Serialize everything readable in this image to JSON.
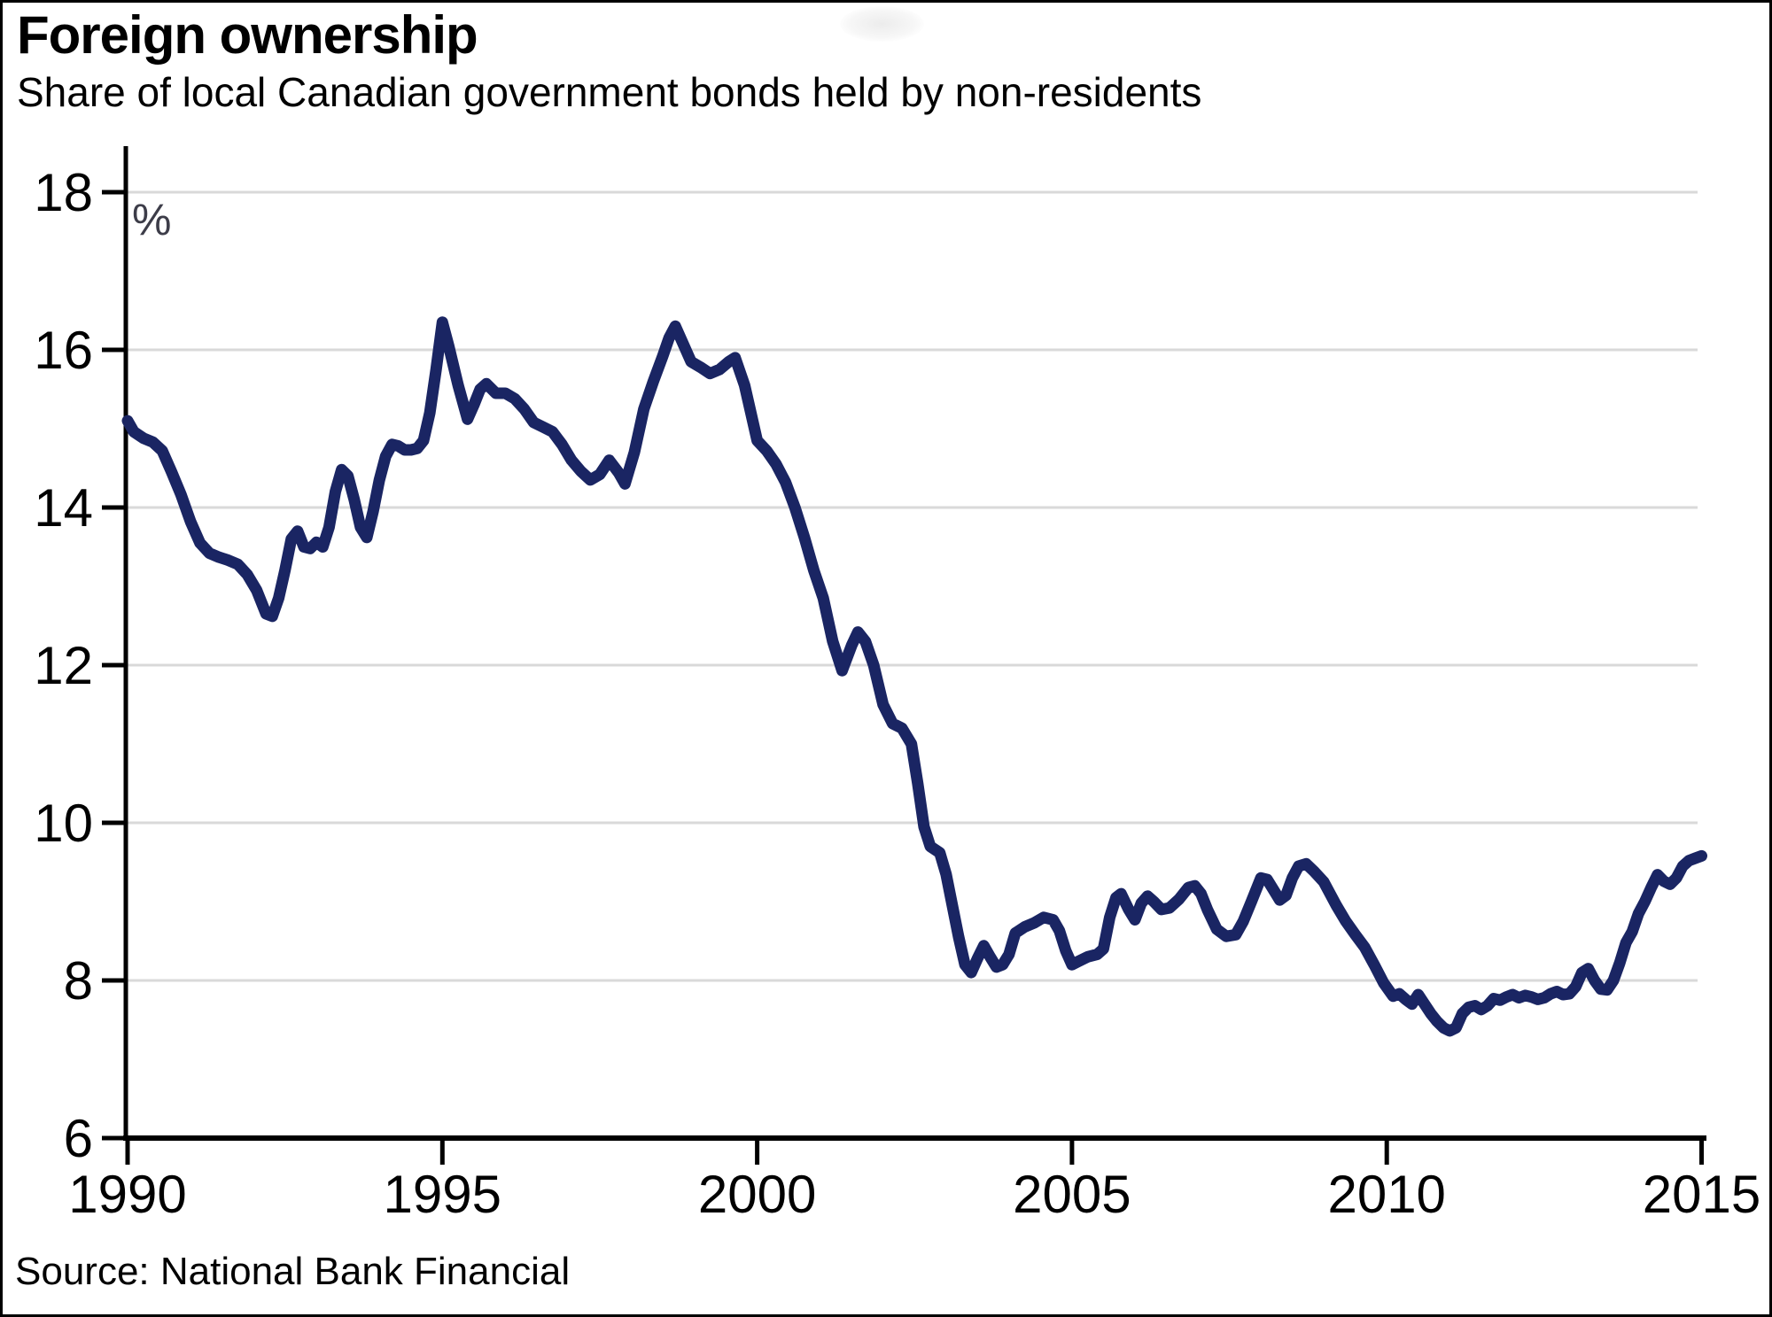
{
  "header": {
    "title": "Foreign ownership",
    "subtitle": "Share of local Canadian government bonds held by non-residents"
  },
  "footer": {
    "source": "Source: National Bank Financial"
  },
  "chart_data": {
    "type": "line",
    "title": "Foreign ownership",
    "subtitle": "Share of local Canadian government bonds held by non-residents",
    "xlabel": "",
    "ylabel": "%",
    "unit_label": "%",
    "xlim": [
      1990,
      2015
    ],
    "ylim": [
      6,
      18
    ],
    "x_ticks": [
      1990,
      1995,
      2000,
      2005,
      2010,
      2015
    ],
    "y_ticks": [
      18,
      16,
      14,
      12,
      10,
      8,
      6
    ],
    "gridlines_at": [
      18,
      16,
      14,
      12,
      10,
      8
    ],
    "grid": "horizontal",
    "legend": "none",
    "line_color": "#1a2563",
    "grid_color": "#d9d9d9",
    "axis_color": "#000000",
    "series": [
      {
        "name": "Share of local Canadian government bonds held by non-residents (%)",
        "points": [
          [
            1990.0,
            15.1
          ],
          [
            1990.1,
            14.96
          ],
          [
            1990.25,
            14.88
          ],
          [
            1990.4,
            14.83
          ],
          [
            1990.55,
            14.72
          ],
          [
            1990.7,
            14.45
          ],
          [
            1990.85,
            14.16
          ],
          [
            1991.0,
            13.82
          ],
          [
            1991.15,
            13.55
          ],
          [
            1991.3,
            13.42
          ],
          [
            1991.45,
            13.37
          ],
          [
            1991.6,
            13.33
          ],
          [
            1991.75,
            13.28
          ],
          [
            1991.9,
            13.15
          ],
          [
            1992.05,
            12.95
          ],
          [
            1992.2,
            12.65
          ],
          [
            1992.3,
            12.62
          ],
          [
            1992.4,
            12.85
          ],
          [
            1992.5,
            13.2
          ],
          [
            1992.6,
            13.6
          ],
          [
            1992.7,
            13.7
          ],
          [
            1992.8,
            13.5
          ],
          [
            1992.9,
            13.48
          ],
          [
            1993.0,
            13.56
          ],
          [
            1993.1,
            13.5
          ],
          [
            1993.2,
            13.75
          ],
          [
            1993.3,
            14.2
          ],
          [
            1993.4,
            14.48
          ],
          [
            1993.5,
            14.4
          ],
          [
            1993.6,
            14.1
          ],
          [
            1993.7,
            13.75
          ],
          [
            1993.8,
            13.62
          ],
          [
            1993.9,
            13.95
          ],
          [
            1994.0,
            14.35
          ],
          [
            1994.1,
            14.65
          ],
          [
            1994.2,
            14.8
          ],
          [
            1994.3,
            14.78
          ],
          [
            1994.4,
            14.73
          ],
          [
            1994.5,
            14.73
          ],
          [
            1994.6,
            14.75
          ],
          [
            1994.7,
            14.85
          ],
          [
            1994.8,
            15.2
          ],
          [
            1994.9,
            15.75
          ],
          [
            1995.0,
            16.35
          ],
          [
            1995.1,
            16.05
          ],
          [
            1995.25,
            15.55
          ],
          [
            1995.4,
            15.12
          ],
          [
            1995.5,
            15.3
          ],
          [
            1995.6,
            15.5
          ],
          [
            1995.7,
            15.57
          ],
          [
            1995.85,
            15.45
          ],
          [
            1996.0,
            15.45
          ],
          [
            1996.15,
            15.38
          ],
          [
            1996.3,
            15.25
          ],
          [
            1996.45,
            15.08
          ],
          [
            1996.6,
            15.02
          ],
          [
            1996.75,
            14.96
          ],
          [
            1996.9,
            14.8
          ],
          [
            1997.05,
            14.6
          ],
          [
            1997.2,
            14.46
          ],
          [
            1997.35,
            14.35
          ],
          [
            1997.5,
            14.42
          ],
          [
            1997.65,
            14.6
          ],
          [
            1997.8,
            14.44
          ],
          [
            1997.9,
            14.3
          ],
          [
            1998.05,
            14.7
          ],
          [
            1998.2,
            15.25
          ],
          [
            1998.35,
            15.6
          ],
          [
            1998.5,
            15.92
          ],
          [
            1998.6,
            16.15
          ],
          [
            1998.7,
            16.3
          ],
          [
            1998.8,
            16.12
          ],
          [
            1998.95,
            15.85
          ],
          [
            1999.1,
            15.78
          ],
          [
            1999.25,
            15.7
          ],
          [
            1999.4,
            15.75
          ],
          [
            1999.55,
            15.85
          ],
          [
            1999.65,
            15.9
          ],
          [
            1999.8,
            15.55
          ],
          [
            1999.9,
            15.2
          ],
          [
            2000.0,
            14.85
          ],
          [
            2000.15,
            14.72
          ],
          [
            2000.3,
            14.55
          ],
          [
            2000.45,
            14.32
          ],
          [
            2000.6,
            14.0
          ],
          [
            2000.75,
            13.62
          ],
          [
            2000.9,
            13.2
          ],
          [
            2001.05,
            12.85
          ],
          [
            2001.2,
            12.3
          ],
          [
            2001.35,
            11.93
          ],
          [
            2001.5,
            12.25
          ],
          [
            2001.6,
            12.42
          ],
          [
            2001.72,
            12.3
          ],
          [
            2001.85,
            12.0
          ],
          [
            2002.0,
            11.5
          ],
          [
            2002.15,
            11.26
          ],
          [
            2002.3,
            11.2
          ],
          [
            2002.45,
            11.0
          ],
          [
            2002.55,
            10.5
          ],
          [
            2002.65,
            9.95
          ],
          [
            2002.75,
            9.7
          ],
          [
            2002.9,
            9.62
          ],
          [
            2003.0,
            9.35
          ],
          [
            2003.1,
            8.95
          ],
          [
            2003.2,
            8.55
          ],
          [
            2003.3,
            8.2
          ],
          [
            2003.4,
            8.1
          ],
          [
            2003.5,
            8.28
          ],
          [
            2003.6,
            8.44
          ],
          [
            2003.7,
            8.3
          ],
          [
            2003.8,
            8.17
          ],
          [
            2003.9,
            8.2
          ],
          [
            2004.0,
            8.33
          ],
          [
            2004.1,
            8.6
          ],
          [
            2004.25,
            8.68
          ],
          [
            2004.4,
            8.73
          ],
          [
            2004.55,
            8.8
          ],
          [
            2004.7,
            8.77
          ],
          [
            2004.8,
            8.63
          ],
          [
            2004.9,
            8.38
          ],
          [
            2005.0,
            8.2
          ],
          [
            2005.1,
            8.24
          ],
          [
            2005.25,
            8.3
          ],
          [
            2005.4,
            8.33
          ],
          [
            2005.5,
            8.4
          ],
          [
            2005.6,
            8.8
          ],
          [
            2005.7,
            9.05
          ],
          [
            2005.78,
            9.1
          ],
          [
            2005.9,
            8.9
          ],
          [
            2006.0,
            8.77
          ],
          [
            2006.1,
            8.98
          ],
          [
            2006.2,
            9.07
          ],
          [
            2006.3,
            9.0
          ],
          [
            2006.42,
            8.9
          ],
          [
            2006.55,
            8.92
          ],
          [
            2006.7,
            9.03
          ],
          [
            2006.85,
            9.18
          ],
          [
            2006.95,
            9.2
          ],
          [
            2007.05,
            9.1
          ],
          [
            2007.15,
            8.9
          ],
          [
            2007.3,
            8.65
          ],
          [
            2007.45,
            8.56
          ],
          [
            2007.6,
            8.58
          ],
          [
            2007.72,
            8.75
          ],
          [
            2007.85,
            9.0
          ],
          [
            2008.0,
            9.3
          ],
          [
            2008.1,
            9.28
          ],
          [
            2008.2,
            9.15
          ],
          [
            2008.3,
            9.02
          ],
          [
            2008.4,
            9.08
          ],
          [
            2008.5,
            9.3
          ],
          [
            2008.6,
            9.45
          ],
          [
            2008.72,
            9.48
          ],
          [
            2008.85,
            9.38
          ],
          [
            2009.0,
            9.25
          ],
          [
            2009.1,
            9.1
          ],
          [
            2009.2,
            8.95
          ],
          [
            2009.35,
            8.75
          ],
          [
            2009.5,
            8.58
          ],
          [
            2009.65,
            8.42
          ],
          [
            2009.8,
            8.2
          ],
          [
            2009.95,
            7.97
          ],
          [
            2010.1,
            7.8
          ],
          [
            2010.2,
            7.83
          ],
          [
            2010.3,
            7.76
          ],
          [
            2010.4,
            7.7
          ],
          [
            2010.5,
            7.82
          ],
          [
            2010.6,
            7.7
          ],
          [
            2010.7,
            7.58
          ],
          [
            2010.8,
            7.48
          ],
          [
            2010.9,
            7.4
          ],
          [
            2011.0,
            7.36
          ],
          [
            2011.1,
            7.4
          ],
          [
            2011.2,
            7.58
          ],
          [
            2011.3,
            7.66
          ],
          [
            2011.4,
            7.68
          ],
          [
            2011.5,
            7.63
          ],
          [
            2011.6,
            7.68
          ],
          [
            2011.7,
            7.77
          ],
          [
            2011.8,
            7.75
          ],
          [
            2011.9,
            7.79
          ],
          [
            2012.0,
            7.82
          ],
          [
            2012.1,
            7.78
          ],
          [
            2012.2,
            7.81
          ],
          [
            2012.3,
            7.79
          ],
          [
            2012.4,
            7.76
          ],
          [
            2012.5,
            7.78
          ],
          [
            2012.6,
            7.83
          ],
          [
            2012.7,
            7.86
          ],
          [
            2012.8,
            7.82
          ],
          [
            2012.9,
            7.83
          ],
          [
            2013.0,
            7.92
          ],
          [
            2013.1,
            8.1
          ],
          [
            2013.2,
            8.15
          ],
          [
            2013.3,
            8.0
          ],
          [
            2013.4,
            7.89
          ],
          [
            2013.5,
            7.88
          ],
          [
            2013.6,
            8.0
          ],
          [
            2013.7,
            8.22
          ],
          [
            2013.8,
            8.48
          ],
          [
            2013.9,
            8.62
          ],
          [
            2014.0,
            8.85
          ],
          [
            2014.1,
            9.0
          ],
          [
            2014.2,
            9.18
          ],
          [
            2014.3,
            9.34
          ],
          [
            2014.4,
            9.26
          ],
          [
            2014.5,
            9.22
          ],
          [
            2014.6,
            9.3
          ],
          [
            2014.7,
            9.45
          ],
          [
            2014.8,
            9.52
          ],
          [
            2014.9,
            9.55
          ],
          [
            2015.0,
            9.58
          ]
        ]
      }
    ],
    "source": "Source: National Bank Financial"
  }
}
